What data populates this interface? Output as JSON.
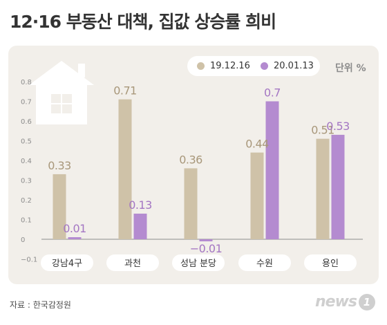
{
  "title": "12·16 부동산 대책, 집값 상승률 희비",
  "unit_label": "단위 %",
  "source": "자료 : 한국감정원",
  "logo": {
    "text": "news",
    "badge": "1"
  },
  "colors": {
    "series1": "#cfc2a8",
    "series2": "#b48bd0",
    "panel": "#f2efea",
    "label1": "#a8977a",
    "label2": "#a476c3"
  },
  "icons": [
    "house-icon"
  ],
  "chart_data": {
    "type": "bar",
    "title": "12·16 부동산 대책, 집값 상승률 희비",
    "categories": [
      "강남4구",
      "과천",
      "성남 분당",
      "수원",
      "용인"
    ],
    "series": [
      {
        "name": "19.12.16",
        "values": [
          0.33,
          0.71,
          0.36,
          0.44,
          0.51
        ],
        "labels": [
          "0.33",
          "0.71",
          "0.36",
          "0.44",
          "0.51"
        ]
      },
      {
        "name": "20.01.13",
        "values": [
          0.01,
          0.13,
          -0.01,
          0.7,
          0.53
        ],
        "labels": [
          "0.01",
          "0.13",
          "−0.01",
          "0.7",
          "0.53"
        ]
      }
    ],
    "ylim": [
      -0.1,
      0.8
    ],
    "yticks": [
      "0.8",
      "0.7",
      "0.6",
      "0.5",
      "0.4",
      "0.3",
      "0.2",
      "0.1",
      "0",
      "−0.1"
    ],
    "ytick_values": [
      0.8,
      0.7,
      0.6,
      0.5,
      0.4,
      0.3,
      0.2,
      0.1,
      0,
      -0.1
    ],
    "grid": false,
    "legend": "top-right"
  }
}
